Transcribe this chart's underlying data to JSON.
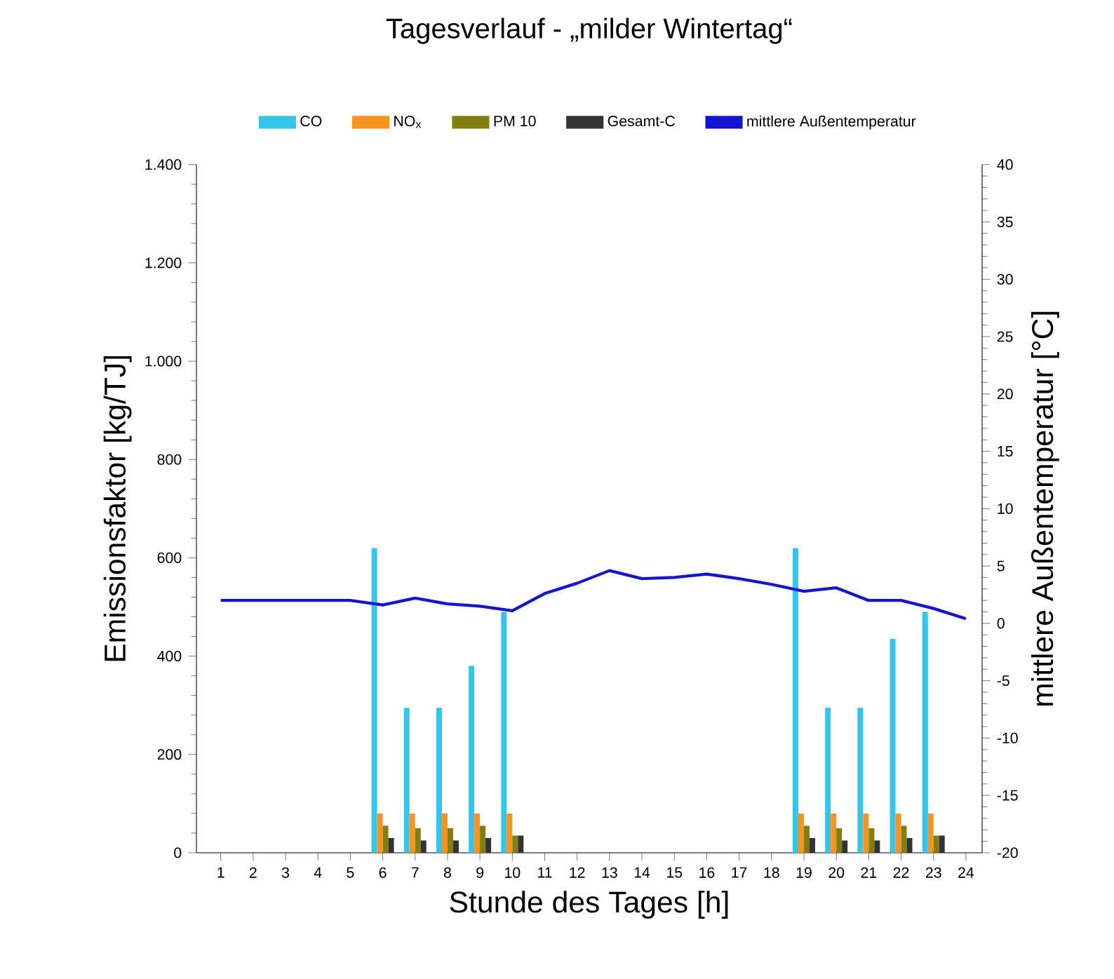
{
  "chart_data": {
    "type": "bar",
    "title": "Tagesverlauf - „milder Wintertag“",
    "xlabel": "Stunde des Tages [h]",
    "ylabel": "Emissionsfaktor [kg/TJ]",
    "y2label": "mittlere Außentemperatur [°C]",
    "categories": [
      "1",
      "2",
      "3",
      "4",
      "5",
      "6",
      "7",
      "8",
      "9",
      "10",
      "11",
      "12",
      "13",
      "14",
      "15",
      "16",
      "17",
      "18",
      "19",
      "20",
      "21",
      "22",
      "23",
      "24"
    ],
    "series": [
      {
        "name": "CO",
        "color": "#33c6ea",
        "values": [
          0,
          0,
          0,
          0,
          0,
          620,
          295,
          295,
          380,
          490,
          0,
          0,
          0,
          0,
          0,
          0,
          0,
          0,
          620,
          295,
          295,
          435,
          490,
          0
        ]
      },
      {
        "name": "NO$_{x}$",
        "color": "#f7941d",
        "values": [
          0,
          0,
          0,
          0,
          0,
          80,
          80,
          80,
          80,
          80,
          0,
          0,
          0,
          0,
          0,
          0,
          0,
          0,
          80,
          80,
          80,
          80,
          80,
          0
        ]
      },
      {
        "name": "PM 10",
        "color": "#7f7f12",
        "values": [
          0,
          0,
          0,
          0,
          0,
          55,
          50,
          50,
          55,
          35,
          0,
          0,
          0,
          0,
          0,
          0,
          0,
          0,
          55,
          50,
          50,
          55,
          35,
          0
        ]
      },
      {
        "name": "Gesamt-C",
        "color": "#333333",
        "values": [
          0,
          0,
          0,
          0,
          0,
          30,
          25,
          25,
          30,
          35,
          0,
          0,
          0,
          0,
          0,
          0,
          0,
          0,
          30,
          25,
          25,
          30,
          35,
          0
        ]
      },
      {
        "name": "mittlere Außentemperatur",
        "type": "line",
        "axis": "y2",
        "color": "#1414d2",
        "values": [
          2.0,
          2.0,
          2.0,
          2.0,
          2.0,
          1.6,
          2.2,
          1.7,
          1.5,
          1.1,
          2.6,
          3.5,
          4.6,
          3.9,
          4.0,
          4.3,
          3.9,
          3.4,
          2.8,
          3.1,
          2.0,
          2.0,
          1.3,
          0.4
        ]
      }
    ],
    "ylim": [
      0,
      1400
    ],
    "yticks": [
      0,
      200,
      400,
      600,
      800,
      {
        "value": 1000,
        "label": "1.000"
      },
      {
        "value": 1200,
        "label": "1.200"
      },
      {
        "value": 1400,
        "label": "1.400"
      }
    ],
    "y2lim": [
      -20,
      40
    ],
    "y2ticks": [
      -20,
      -15,
      -10,
      -5,
      0,
      5,
      10,
      15,
      20,
      25,
      30,
      35,
      40
    ],
    "grid": false,
    "legend": "top"
  }
}
